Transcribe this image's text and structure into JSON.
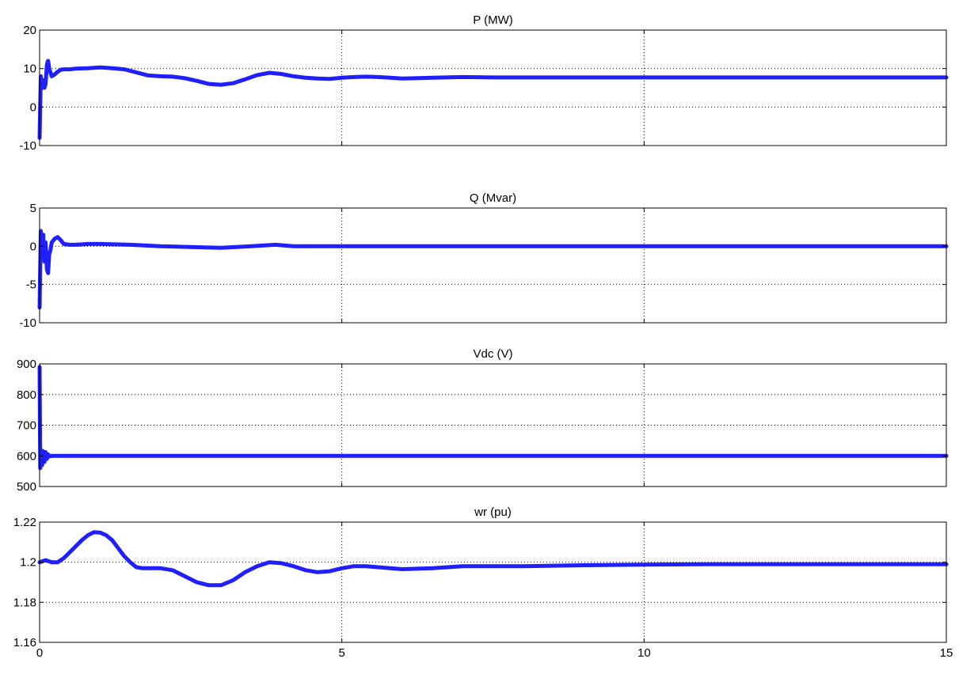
{
  "figure": {
    "line_color": "#1f1fff",
    "grid": true,
    "grid_style": "dotted",
    "x_ticks": [
      0,
      5,
      10,
      15
    ],
    "xlim": [
      0,
      15
    ]
  },
  "chart_data": [
    {
      "type": "line",
      "title": "P (MW)",
      "xlabel": "",
      "ylabel": "",
      "xlim": [
        0,
        15
      ],
      "ylim": [
        -10,
        20
      ],
      "y_ticks": [
        -10,
        0,
        10,
        20
      ],
      "series": [
        {
          "x": [
            0,
            0.02,
            0.04,
            0.06,
            0.08,
            0.1,
            0.12,
            0.14,
            0.16,
            0.18,
            0.2,
            0.25,
            0.3,
            0.35,
            0.4,
            0.5,
            0.6,
            0.8,
            1.0,
            1.2,
            1.4,
            1.6,
            1.8,
            2.0,
            2.2,
            2.4,
            2.6,
            2.8,
            3.0,
            3.2,
            3.4,
            3.6,
            3.8,
            4.0,
            4.2,
            4.4,
            4.6,
            4.8,
            5.0,
            5.2,
            5.4,
            5.6,
            5.8,
            6.0,
            6.5,
            7.0,
            7.5,
            8.0,
            9.0,
            10.0,
            11.0,
            12.0,
            13.0,
            14.0,
            15.0
          ],
          "y": [
            -8,
            8,
            5,
            7,
            5,
            6,
            11,
            12,
            10,
            9,
            8,
            8.5,
            9.2,
            9.7,
            9.8,
            9.8,
            10.0,
            10.1,
            10.3,
            10.1,
            9.8,
            9.0,
            8.2,
            8.0,
            7.9,
            7.5,
            6.8,
            6.0,
            5.8,
            6.2,
            7.2,
            8.3,
            8.9,
            8.6,
            8.0,
            7.6,
            7.4,
            7.3,
            7.6,
            7.8,
            7.9,
            7.8,
            7.6,
            7.4,
            7.6,
            7.8,
            7.7,
            7.7,
            7.7,
            7.7,
            7.7,
            7.7,
            7.7,
            7.7,
            7.7
          ]
        }
      ]
    },
    {
      "type": "line",
      "title": "Q (Mvar)",
      "xlabel": "",
      "ylabel": "",
      "xlim": [
        0,
        15
      ],
      "ylim": [
        -10,
        5
      ],
      "y_ticks": [
        -10,
        -5,
        0,
        5
      ],
      "series": [
        {
          "x": [
            0,
            0.02,
            0.04,
            0.06,
            0.08,
            0.1,
            0.12,
            0.14,
            0.16,
            0.18,
            0.2,
            0.25,
            0.3,
            0.35,
            0.4,
            0.5,
            0.6,
            0.8,
            1.0,
            1.5,
            2.0,
            2.5,
            3.0,
            3.5,
            3.9,
            4.2,
            5.0,
            6.0,
            8.0,
            10.0,
            12.0,
            15.0
          ],
          "y": [
            -8,
            2,
            -1,
            1.5,
            -2,
            0.5,
            -3,
            -3.5,
            -1,
            -0.5,
            0.5,
            1.0,
            1.2,
            0.8,
            0.3,
            0.2,
            0.2,
            0.3,
            0.3,
            0.2,
            0.0,
            -0.1,
            -0.2,
            0.0,
            0.2,
            0.0,
            0.0,
            0.0,
            0.0,
            0.0,
            0.0,
            0.0
          ]
        }
      ]
    },
    {
      "type": "line",
      "title": "Vdc (V)",
      "xlabel": "",
      "ylabel": "",
      "xlim": [
        0,
        15
      ],
      "ylim": [
        500,
        900
      ],
      "y_ticks": [
        500,
        600,
        700,
        800,
        900
      ],
      "series": [
        {
          "x": [
            0,
            0.01,
            0.02,
            0.04,
            0.06,
            0.08,
            0.1,
            0.12,
            0.14,
            0.16,
            0.2,
            0.3,
            1.0,
            5.0,
            10.0,
            15.0
          ],
          "y": [
            890,
            560,
            620,
            570,
            615,
            580,
            612,
            590,
            605,
            598,
            600,
            600,
            600,
            600,
            600,
            600
          ]
        }
      ]
    },
    {
      "type": "line",
      "title": "wr (pu)",
      "xlabel": "",
      "ylabel": "",
      "xlim": [
        0,
        15
      ],
      "ylim": [
        1.16,
        1.22
      ],
      "y_ticks": [
        1.16,
        1.18,
        1.2,
        1.22
      ],
      "series": [
        {
          "x": [
            0,
            0.1,
            0.2,
            0.3,
            0.4,
            0.5,
            0.6,
            0.7,
            0.8,
            0.9,
            1.0,
            1.1,
            1.2,
            1.3,
            1.4,
            1.5,
            1.6,
            1.7,
            1.8,
            2.0,
            2.2,
            2.4,
            2.6,
            2.8,
            3.0,
            3.2,
            3.4,
            3.6,
            3.8,
            4.0,
            4.2,
            4.4,
            4.6,
            4.8,
            5.0,
            5.2,
            5.4,
            5.6,
            5.8,
            6.0,
            6.5,
            7.0,
            8.0,
            9.0,
            10.0,
            11.0,
            12.0,
            13.0,
            15.0
          ],
          "y": [
            1.2,
            1.201,
            1.2,
            1.2,
            1.202,
            1.205,
            1.208,
            1.211,
            1.2135,
            1.215,
            1.2148,
            1.2135,
            1.211,
            1.207,
            1.203,
            1.2,
            1.1975,
            1.197,
            1.197,
            1.197,
            1.196,
            1.193,
            1.19,
            1.1885,
            1.1885,
            1.191,
            1.195,
            1.198,
            1.2,
            1.1995,
            1.198,
            1.196,
            1.195,
            1.1955,
            1.197,
            1.198,
            1.198,
            1.1975,
            1.197,
            1.1965,
            1.197,
            1.198,
            1.198,
            1.1985,
            1.1988,
            1.199,
            1.199,
            1.199,
            1.199
          ]
        }
      ]
    }
  ]
}
